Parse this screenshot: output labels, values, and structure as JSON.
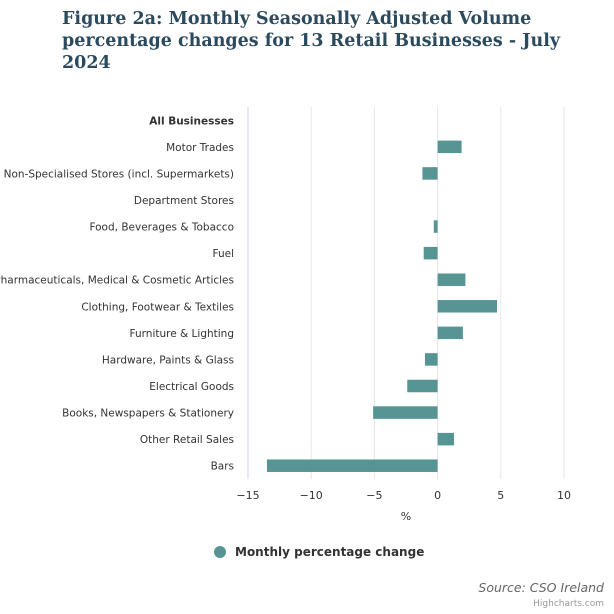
{
  "title": "Figure 2a: Monthly Seasonally Adjusted Volume percentage changes for 13 Retail Businesses - July 2024",
  "source": "Source: CSO Ireland",
  "credits": "Highcharts.com",
  "colors": {
    "bar": "#579494",
    "title": "#2c4a5e",
    "grid": "#e6e6e6"
  },
  "chart_data": {
    "type": "bar",
    "orientation": "horizontal",
    "title": "Figure 2a: Monthly Seasonally Adjusted Volume percentage changes for 13 Retail Businesses - July 2024",
    "xlabel": "%",
    "categories": [
      "All Businesses",
      "Motor Trades",
      "Non-Specialised Stores (incl. Supermarkets)",
      "Department Stores",
      "Food, Beverages & Tobacco",
      "Fuel",
      "Pharmaceuticals, Medical & Cosmetic Articles",
      "Clothing, Footwear & Textiles",
      "Furniture & Lighting",
      "Hardware, Paints & Glass",
      "Electrical Goods",
      "Books, Newspapers & Stationery",
      "Other Retail Sales",
      "Bars"
    ],
    "bold_categories": [
      "All Businesses"
    ],
    "series": [
      {
        "name": "Monthly percentage change",
        "values": [
          0,
          1.9,
          -1.2,
          0,
          -0.3,
          -1.1,
          2.2,
          4.7,
          2.0,
          -1.0,
          -2.4,
          -5.1,
          1.3,
          -13.5
        ]
      }
    ],
    "xlim": [
      -15,
      10
    ],
    "xticks": [
      -15,
      -10,
      -5,
      0,
      5,
      10
    ],
    "xtick_labels": [
      "−15",
      "−10",
      "−5",
      "0",
      "5",
      "10"
    ],
    "grid": true,
    "legend_position": "bottom-center"
  }
}
